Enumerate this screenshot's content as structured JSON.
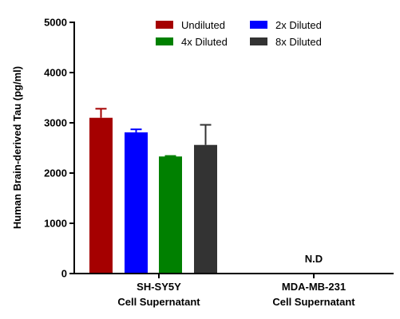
{
  "chart_data": {
    "type": "bar",
    "title": "",
    "ylabel": "Human Brain-derived Tau (pg/ml)",
    "xlabel": "",
    "ylim": [
      0,
      5000
    ],
    "yticks": [
      "0",
      "1000",
      "2000",
      "3000",
      "4000",
      "5000"
    ],
    "categories": [
      {
        "line1": "SH-SY5Y",
        "line2": "Cell Supernatant"
      },
      {
        "line1": "MDA-MB-231",
        "line2": "Cell Supernatant"
      }
    ],
    "series": [
      {
        "name": "Undiluted",
        "color": "#a50000",
        "values": [
          3100,
          null
        ],
        "errors": [
          180,
          null
        ]
      },
      {
        "name": "2x Diluted",
        "color": "#0000ff",
        "values": [
          2810,
          null
        ],
        "errors": [
          60,
          null
        ]
      },
      {
        "name": "4x Diluted",
        "color": "#008000",
        "values": [
          2330,
          null
        ],
        "errors": [
          10,
          null
        ]
      },
      {
        "name": "8x Diluted",
        "color": "#333333",
        "values": [
          2560,
          null
        ],
        "errors": [
          400,
          null
        ]
      }
    ],
    "annotations": [
      {
        "category_index": 1,
        "text": "N.D"
      }
    ],
    "legend_position": "top"
  }
}
